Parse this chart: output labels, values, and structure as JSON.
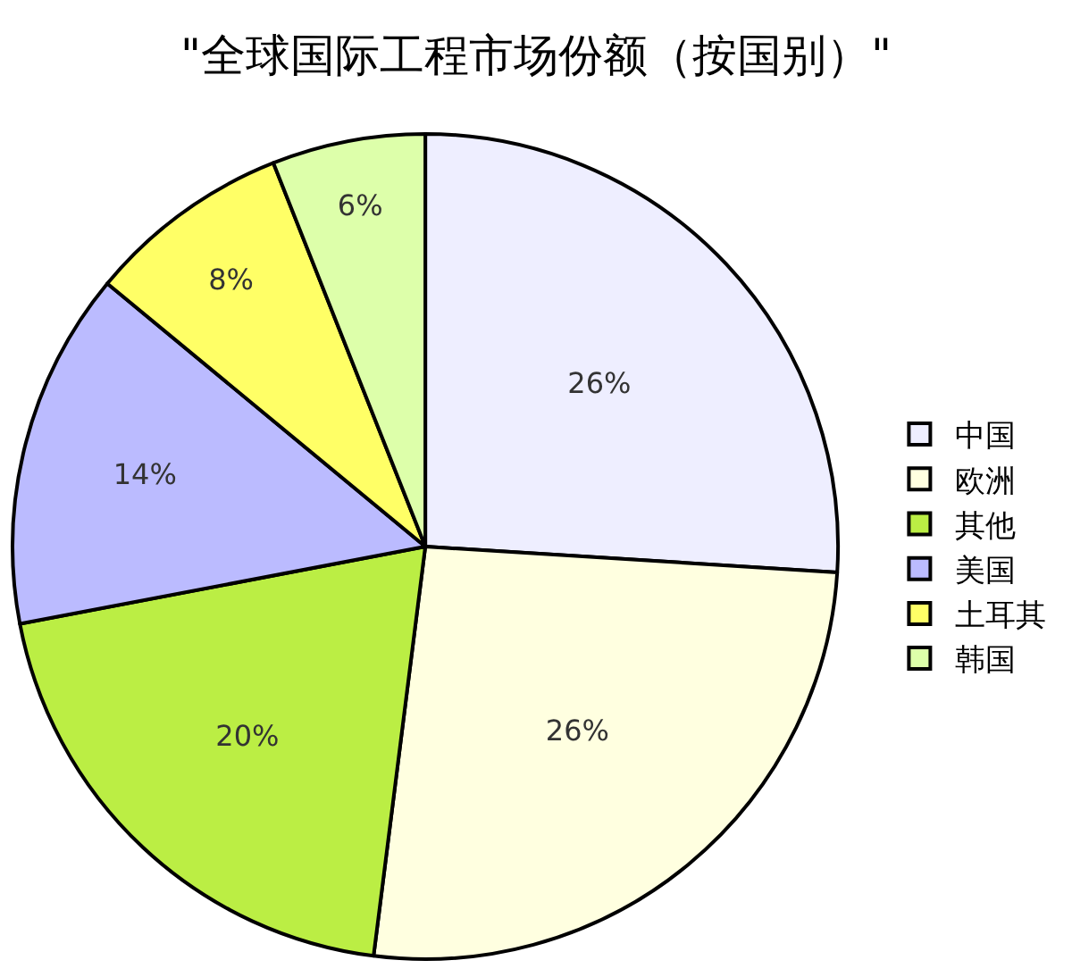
{
  "chart_data": {
    "type": "pie",
    "title": "\"全球国际工程市场份额（按国别）\"",
    "categories": [
      "中国",
      "欧洲",
      "其他",
      "美国",
      "土耳其",
      "韩国"
    ],
    "values": [
      26,
      26,
      20,
      14,
      8,
      6
    ],
    "value_labels": [
      "26%",
      "26%",
      "20%",
      "14%",
      "8%",
      "6%"
    ],
    "colors": [
      "#eeeeff",
      "#ffffe0",
      "#bbee44",
      "#bbbbff",
      "#ffff66",
      "#ddffaa"
    ],
    "legend": "right"
  }
}
